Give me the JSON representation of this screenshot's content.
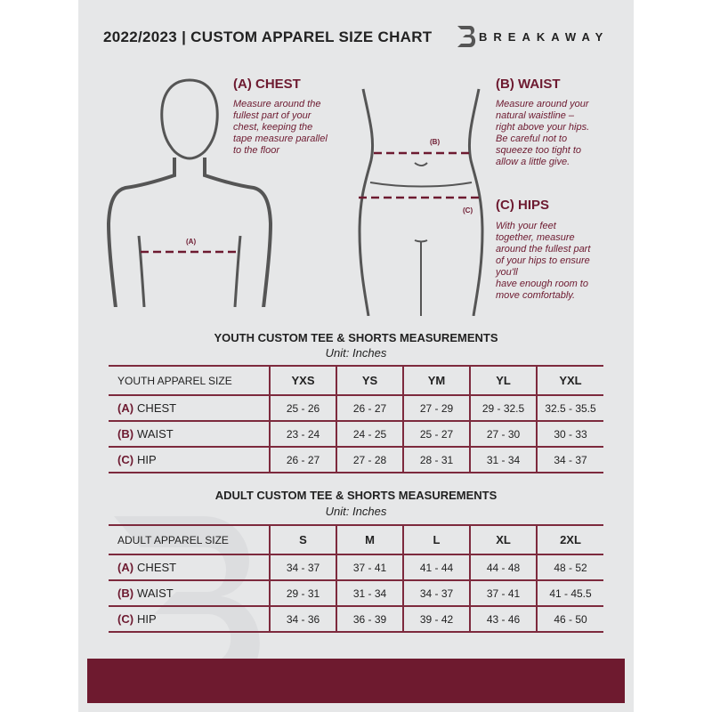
{
  "header": {
    "title": "2022/2023  |  CUSTOM APPAREL SIZE CHART",
    "brand": "BREAKAWAY"
  },
  "measures": {
    "chest": {
      "heading": "(A) CHEST",
      "lines": [
        "Measure around the",
        "fullest part of your",
        "chest, keeping the",
        "tape measure parallel",
        "to the floor"
      ],
      "marker": "(A)"
    },
    "waist": {
      "heading": "(B) WAIST",
      "lines": [
        "Measure around your",
        "natural waistline –",
        "right above your hips.",
        "Be careful not to",
        "squeeze too tight to",
        "allow a little give."
      ],
      "marker": "(B)"
    },
    "hips": {
      "heading": "(C) HIPS",
      "lines": [
        "With your feet",
        "together, measure",
        "around the fullest part",
        "of your hips to ensure",
        "you'll",
        "have enough room to",
        "move comfortably."
      ],
      "marker": "(C)"
    }
  },
  "youth": {
    "title": "YOUTH CUSTOM TEE & SHORTS MEASUREMENTS",
    "unit": "Unit: Inches",
    "corner": "YOUTH APPAREL SIZE",
    "sizes": [
      "YXS",
      "YS",
      "YM",
      "YL",
      "YXL"
    ],
    "rows": [
      {
        "letter": "(A)",
        "label": "CHEST",
        "values": [
          "25 - 26",
          "26 - 27",
          "27 - 29",
          "29 - 32.5",
          "32.5 - 35.5"
        ]
      },
      {
        "letter": "(B)",
        "label": "WAIST",
        "values": [
          "23 - 24",
          "24 - 25",
          "25 - 27",
          "27 - 30",
          "30 - 33"
        ]
      },
      {
        "letter": "(C)",
        "label": "HIP",
        "values": [
          "26 - 27",
          "27 - 28",
          "28 - 31",
          "31 - 34",
          "34 - 37"
        ]
      }
    ]
  },
  "adult": {
    "title": "ADULT CUSTOM TEE & SHORTS MEASUREMENTS",
    "unit": "Unit: Inches",
    "corner": "ADULT APPAREL SIZE",
    "sizes": [
      "S",
      "M",
      "L",
      "XL",
      "2XL"
    ],
    "rows": [
      {
        "letter": "(A)",
        "label": "CHEST",
        "values": [
          "34 - 37",
          "37 - 41",
          "41 - 44",
          "44 - 48",
          "48 - 52"
        ]
      },
      {
        "letter": "(B)",
        "label": "WAIST",
        "values": [
          "29 - 31",
          "31 - 34",
          "34 - 37",
          "37 - 41",
          "41 - 45.5"
        ]
      },
      {
        "letter": "(C)",
        "label": "HIP",
        "values": [
          "34 - 36",
          "36 - 39",
          "39 - 42",
          "43 - 46",
          "46 - 50"
        ]
      }
    ]
  },
  "colors": {
    "accent": "#6e1a2f",
    "background": "#e6e7e8"
  }
}
